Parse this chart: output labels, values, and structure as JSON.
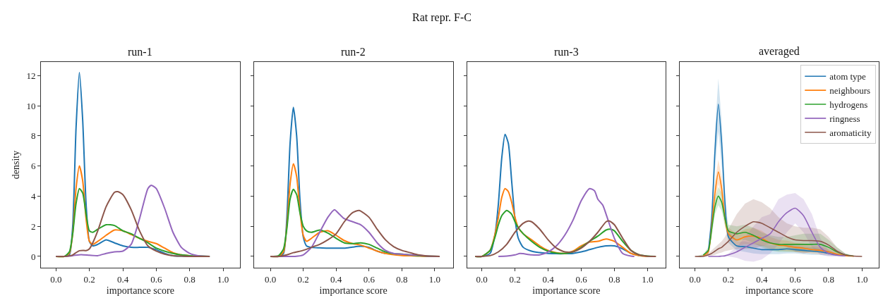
{
  "chart_data": [
    {
      "type": "line",
      "title": "run-1",
      "annotations": [
        "Rat repr. F-C"
      ],
      "xlabel": "importance score",
      "ylabel": "density",
      "xlim": [
        -0.09,
        1.1
      ],
      "ylim": [
        -0.75,
        12.9
      ],
      "xticks": [
        {
          "value": 0,
          "label": "0.0"
        },
        {
          "value": 0.2,
          "label": "0.2"
        },
        {
          "value": 0.4,
          "label": "0.4"
        },
        {
          "value": 0.6,
          "label": "0.6"
        },
        {
          "value": 0.8,
          "label": "0.8"
        },
        {
          "value": 1,
          "label": "1.0"
        }
      ],
      "yticks": [
        0,
        2,
        4,
        6,
        8,
        10,
        12
      ],
      "grid": false,
      "legend": false,
      "series": [
        {
          "color": "#1f77b4",
          "x": [
            0,
            0.05,
            0.08,
            0.1,
            0.12,
            0.14,
            0.16,
            0.18,
            0.2,
            0.22,
            0.25,
            0.3,
            0.35,
            0.4,
            0.45,
            0.5,
            0.55,
            0.6,
            0.65,
            0.7,
            0.75,
            0.8
          ],
          "values": [
            0,
            0,
            0.1,
            2,
            8.5,
            12.2,
            9,
            3.5,
            1.0,
            0.7,
            0.8,
            1.1,
            0.9,
            0.7,
            0.6,
            0.6,
            0.6,
            0.45,
            0.2,
            0.05,
            0.02,
            0
          ]
        },
        {
          "color": "#ff7f0e",
          "x": [
            0,
            0.05,
            0.08,
            0.1,
            0.12,
            0.14,
            0.16,
            0.18,
            0.2,
            0.22,
            0.25,
            0.3,
            0.35,
            0.4,
            0.45,
            0.5,
            0.55,
            0.6,
            0.65,
            0.7,
            0.75,
            0.8
          ],
          "values": [
            0,
            0,
            0.2,
            1.5,
            4.5,
            6.0,
            5,
            2.5,
            1.0,
            0.8,
            1.0,
            1.4,
            1.75,
            1.7,
            1.45,
            1.2,
            1.0,
            0.85,
            0.55,
            0.25,
            0.1,
            0.05
          ]
        },
        {
          "color": "#2ca02c",
          "x": [
            0,
            0.05,
            0.08,
            0.1,
            0.12,
            0.14,
            0.16,
            0.18,
            0.2,
            0.22,
            0.25,
            0.3,
            0.35,
            0.4,
            0.45,
            0.5,
            0.55,
            0.6,
            0.65,
            0.7,
            0.75,
            0.8,
            0.85,
            0.92
          ],
          "values": [
            0,
            0,
            0.3,
            1.5,
            3.5,
            4.5,
            4.2,
            2.8,
            1.7,
            1.6,
            1.8,
            2.1,
            2.05,
            1.7,
            1.5,
            1.2,
            0.9,
            0.55,
            0.35,
            0.2,
            0.1,
            0.05,
            0.03,
            0
          ]
        },
        {
          "color": "#9467bd",
          "x": [
            0,
            0.05,
            0.1,
            0.15,
            0.2,
            0.25,
            0.3,
            0.35,
            0.4,
            0.45,
            0.5,
            0.55,
            0.57,
            0.6,
            0.65,
            0.7,
            0.75,
            0.8,
            0.85,
            0.92
          ],
          "values": [
            0,
            0,
            0.05,
            0.12,
            0.08,
            0.05,
            0.2,
            0.3,
            0.35,
            0.8,
            2.5,
            4.5,
            4.72,
            4.5,
            3.2,
            1.6,
            0.6,
            0.2,
            0.05,
            0
          ]
        },
        {
          "color": "#8c564b",
          "x": [
            0,
            0.05,
            0.1,
            0.12,
            0.14,
            0.16,
            0.18,
            0.2,
            0.22,
            0.25,
            0.3,
            0.35,
            0.37,
            0.4,
            0.45,
            0.5,
            0.55,
            0.6,
            0.65,
            0.7,
            0.75,
            0.8,
            0.92
          ],
          "values": [
            0,
            0,
            0.1,
            0.25,
            0.38,
            0.4,
            0.38,
            0.5,
            0.9,
            1.7,
            3.3,
            4.25,
            4.3,
            4.1,
            3.1,
            1.7,
            0.7,
            0.35,
            0.15,
            0.05,
            0.02,
            0,
            0
          ]
        }
      ]
    },
    {
      "type": "line",
      "title": "run-2",
      "xlabel": "importance score",
      "xlim": [
        -0.1,
        1.11
      ],
      "ylim": [
        -0.75,
        12.9
      ],
      "xticks": [
        {
          "value": 0,
          "label": "0.0"
        },
        {
          "value": 0.2,
          "label": "0.2"
        },
        {
          "value": 0.4,
          "label": "0.4"
        },
        {
          "value": 0.6,
          "label": "0.6"
        },
        {
          "value": 0.8,
          "label": "0.8"
        },
        {
          "value": 1,
          "label": "1.0"
        }
      ],
      "yticks": [
        {
          "value": 0,
          "label": null
        },
        {
          "value": 2,
          "label": null
        },
        {
          "value": 4,
          "label": null
        },
        {
          "value": 6,
          "label": null
        },
        {
          "value": 8,
          "label": null
        },
        {
          "value": 10,
          "label": null
        },
        {
          "value": 12,
          "label": null
        }
      ],
      "tick_labels": "x",
      "grid": false,
      "legend": false,
      "series": [
        {
          "color": "#1f77b4",
          "x": [
            0,
            0.05,
            0.08,
            0.1,
            0.12,
            0.14,
            0.16,
            0.18,
            0.2,
            0.22,
            0.25,
            0.3,
            0.35,
            0.4,
            0.45,
            0.5,
            0.55,
            0.6,
            0.65,
            0.7
          ],
          "values": [
            0,
            0,
            0.2,
            2.5,
            7.5,
            9.9,
            8,
            3.8,
            1.3,
            0.7,
            0.6,
            0.57,
            0.55,
            0.55,
            0.55,
            0.62,
            0.68,
            0.6,
            0.35,
            0.2
          ]
        },
        {
          "color": "#ff7f0e",
          "x": [
            0,
            0.05,
            0.08,
            0.1,
            0.12,
            0.14,
            0.16,
            0.18,
            0.2,
            0.22,
            0.25,
            0.3,
            0.35,
            0.4,
            0.45,
            0.5,
            0.55,
            0.6,
            0.65,
            0.7,
            0.75,
            0.8,
            0.85,
            0.9,
            0.95,
            1.03
          ],
          "values": [
            0,
            0,
            0.3,
            2,
            4.8,
            6.15,
            5.3,
            3.0,
            1.4,
            1.0,
            1.2,
            1.6,
            1.7,
            1.4,
            1.05,
            0.85,
            0.75,
            0.55,
            0.35,
            0.2,
            0.12,
            0.06,
            0.04,
            0.02,
            0,
            0
          ]
        },
        {
          "color": "#2ca02c",
          "x": [
            0,
            0.05,
            0.08,
            0.1,
            0.12,
            0.14,
            0.16,
            0.18,
            0.2,
            0.22,
            0.25,
            0.3,
            0.35,
            0.4,
            0.45,
            0.5,
            0.55,
            0.6,
            0.65,
            0.7,
            0.75,
            0.8,
            0.85,
            0.9,
            0.95,
            1.03
          ],
          "values": [
            0,
            0.05,
            0.5,
            1.8,
            3.8,
            4.45,
            4.1,
            2.9,
            2.0,
            1.7,
            1.6,
            1.75,
            1.55,
            1.2,
            0.9,
            0.85,
            0.9,
            0.8,
            0.55,
            0.3,
            0.18,
            0.15,
            0.1,
            0.05,
            0.02,
            0
          ]
        },
        {
          "color": "#9467bd",
          "x": [
            0,
            0.1,
            0.15,
            0.2,
            0.25,
            0.3,
            0.35,
            0.39,
            0.42,
            0.45,
            0.5,
            0.55,
            0.6,
            0.65,
            0.7,
            0.75,
            0.8,
            0.85,
            0.9,
            0.95,
            1.03
          ],
          "values": [
            0,
            0,
            0,
            0.1,
            0.6,
            1.6,
            2.6,
            3.1,
            2.8,
            2.5,
            2.3,
            2.1,
            1.6,
            0.9,
            0.4,
            0.2,
            0.15,
            0.1,
            0.08,
            0.02,
            0
          ]
        },
        {
          "color": "#8c564b",
          "x": [
            0,
            0.05,
            0.1,
            0.14,
            0.2,
            0.25,
            0.3,
            0.35,
            0.4,
            0.45,
            0.5,
            0.54,
            0.6,
            0.65,
            0.7,
            0.75,
            0.8,
            0.85,
            0.9,
            0.95,
            1.03
          ],
          "values": [
            0,
            0,
            0.1,
            0.25,
            0.4,
            0.6,
            0.8,
            1.1,
            1.5,
            2.3,
            2.9,
            3.05,
            2.6,
            1.8,
            1.1,
            0.65,
            0.4,
            0.25,
            0.1,
            0.03,
            0
          ]
        }
      ]
    },
    {
      "type": "line",
      "title": "run-3",
      "xlabel": "importance score",
      "xlim": [
        -0.09,
        1.11
      ],
      "ylim": [
        -0.75,
        12.9
      ],
      "xticks": [
        {
          "value": 0,
          "label": "0.0"
        },
        {
          "value": 0.2,
          "label": "0.2"
        },
        {
          "value": 0.4,
          "label": "0.4"
        },
        {
          "value": 0.6,
          "label": "0.6"
        },
        {
          "value": 0.8,
          "label": "0.8"
        },
        {
          "value": 1,
          "label": "1.0"
        }
      ],
      "yticks": [
        {
          "value": 0,
          "label": null
        },
        {
          "value": 2,
          "label": null
        },
        {
          "value": 4,
          "label": null
        },
        {
          "value": 6,
          "label": null
        },
        {
          "value": 8,
          "label": null
        },
        {
          "value": 10,
          "label": null
        },
        {
          "value": 12,
          "label": null
        }
      ],
      "tick_labels": "x",
      "grid": false,
      "legend": false,
      "series": [
        {
          "color": "#1f77b4",
          "x": [
            -0.04,
            0,
            0.05,
            0.08,
            0.1,
            0.12,
            0.14,
            0.16,
            0.18,
            0.2,
            0.22,
            0.25,
            0.3,
            0.35,
            0.4,
            0.45,
            0.5,
            0.55,
            0.6,
            0.65,
            0.7,
            0.75,
            0.8,
            0.85,
            0.9,
            0.95
          ],
          "values": [
            0,
            0,
            0.2,
            1.5,
            3.5,
            6.5,
            8.1,
            7.5,
            5,
            2.5,
            1.2,
            0.6,
            0.35,
            0.25,
            0.2,
            0.18,
            0.18,
            0.2,
            0.3,
            0.45,
            0.6,
            0.7,
            0.7,
            0.5,
            0.2,
            0.05
          ]
        },
        {
          "color": "#ff7f0e",
          "x": [
            -0.04,
            0,
            0.05,
            0.08,
            0.1,
            0.12,
            0.14,
            0.16,
            0.18,
            0.2,
            0.22,
            0.25,
            0.3,
            0.35,
            0.4,
            0.45,
            0.5,
            0.55,
            0.6,
            0.65,
            0.7,
            0.75,
            0.8,
            0.85,
            0.9,
            0.95,
            1.0,
            1.05
          ],
          "values": [
            0,
            0,
            0.4,
            1.5,
            2.6,
            3.9,
            4.5,
            4.3,
            3.6,
            2.6,
            1.9,
            1.5,
            1.1,
            0.7,
            0.4,
            0.25,
            0.2,
            0.35,
            0.7,
            0.95,
            1.0,
            1.15,
            1.0,
            0.6,
            0.2,
            0.05,
            0,
            0
          ]
        },
        {
          "color": "#2ca02c",
          "x": [
            -0.04,
            0,
            0.05,
            0.08,
            0.1,
            0.12,
            0.15,
            0.18,
            0.2,
            0.22,
            0.25,
            0.3,
            0.35,
            0.4,
            0.45,
            0.5,
            0.55,
            0.6,
            0.65,
            0.7,
            0.75,
            0.78,
            0.8,
            0.85,
            0.9,
            0.95,
            1.0,
            1.05
          ],
          "values": [
            0,
            0,
            0.4,
            1.3,
            2.1,
            2.7,
            3.05,
            2.8,
            2.3,
            1.9,
            1.5,
            1.0,
            0.6,
            0.35,
            0.22,
            0.2,
            0.3,
            0.6,
            1.0,
            1.35,
            1.75,
            1.8,
            1.7,
            1.0,
            0.4,
            0.1,
            0.02,
            0
          ]
        },
        {
          "color": "#9467bd",
          "x": [
            0.1,
            0.15,
            0.2,
            0.23,
            0.25,
            0.3,
            0.35,
            0.4,
            0.45,
            0.5,
            0.55,
            0.6,
            0.65,
            0.68,
            0.7,
            0.73,
            0.75,
            0.8,
            0.85,
            0.9,
            0.92
          ],
          "values": [
            0,
            0.02,
            0.1,
            0.2,
            0.18,
            0.1,
            0.1,
            0.3,
            0.7,
            1.4,
            2.4,
            3.7,
            4.5,
            4.35,
            3.8,
            3.4,
            2.8,
            1.2,
            0.2,
            0.02,
            0
          ]
        },
        {
          "color": "#8c564b",
          "x": [
            -0.04,
            0,
            0.05,
            0.1,
            0.15,
            0.2,
            0.25,
            0.28,
            0.3,
            0.35,
            0.4,
            0.45,
            0.5,
            0.55,
            0.6,
            0.65,
            0.7,
            0.75,
            0.77,
            0.8,
            0.85,
            0.9,
            0.95,
            1.0,
            1.05
          ],
          "values": [
            0,
            0,
            0.05,
            0.3,
            0.8,
            1.6,
            2.2,
            2.35,
            2.3,
            1.8,
            1.1,
            0.55,
            0.3,
            0.3,
            0.55,
            1.0,
            1.6,
            2.3,
            2.35,
            2.1,
            1.2,
            0.4,
            0.1,
            0.01,
            0
          ]
        }
      ]
    },
    {
      "type": "line",
      "title": "averaged",
      "xlabel": "importance score",
      "xlim": [
        -0.09,
        1.1
      ],
      "ylim": [
        -0.75,
        12.9
      ],
      "xticks": [
        {
          "value": 0,
          "label": "0.0"
        },
        {
          "value": 0.2,
          "label": "0.2"
        },
        {
          "value": 0.4,
          "label": "0.4"
        },
        {
          "value": 0.6,
          "label": "0.6"
        },
        {
          "value": 0.8,
          "label": "0.8"
        },
        {
          "value": 1,
          "label": "1.0"
        }
      ],
      "yticks": [
        {
          "value": 0,
          "label": null
        },
        {
          "value": 2,
          "label": null
        },
        {
          "value": 4,
          "label": null
        },
        {
          "value": 6,
          "label": null
        },
        {
          "value": 8,
          "label": null
        },
        {
          "value": 10,
          "label": null
        },
        {
          "value": 12,
          "label": null
        }
      ],
      "tick_labels": "x",
      "grid": false,
      "legend": "top right",
      "x": [
        0,
        0.05,
        0.08,
        0.1,
        0.12,
        0.14,
        0.16,
        0.18,
        0.2,
        0.25,
        0.3,
        0.35,
        0.4,
        0.45,
        0.5,
        0.55,
        0.6,
        0.65,
        0.7,
        0.75,
        0.8,
        0.85,
        0.9,
        0.95,
        1.0
      ],
      "series": [
        {
          "name": "atom type",
          "color": "#1f77b4",
          "values": [
            null,
            null,
            0.3,
            2.5,
            7,
            10.1,
            7.5,
            3.5,
            1.3,
            0.7,
            0.65,
            0.55,
            0.45,
            0.45,
            0.45,
            0.5,
            0.45,
            0.4,
            0.35,
            0.3,
            0.2,
            0.1,
            0.03,
            null,
            null
          ],
          "lower": [
            0,
            0,
            0.1,
            1.8,
            5.8,
            8.3,
            6.0,
            2.6,
            0.9,
            0.4,
            0.3,
            0.2,
            0.15,
            0.15,
            0.15,
            0.2,
            0.2,
            0.15,
            0.1,
            0.1,
            0.05,
            0.02,
            0,
            0,
            0
          ],
          "upper": [
            0,
            0.1,
            0.5,
            3.2,
            8.3,
            11.8,
            9.0,
            4.4,
            1.7,
            1.0,
            1.0,
            0.9,
            0.75,
            0.75,
            0.75,
            0.8,
            0.7,
            0.65,
            0.6,
            0.5,
            0.35,
            0.2,
            0.06,
            0.01,
            0
          ]
        },
        {
          "name": "neighbours",
          "color": "#ff7f0e",
          "values": [
            null,
            0.05,
            0.3,
            2,
            4.2,
            5.6,
            4.5,
            2.5,
            1.5,
            1.1,
            1.3,
            1.35,
            1.2,
            0.9,
            0.75,
            0.7,
            0.6,
            0.55,
            0.45,
            0.4,
            0.3,
            0.15,
            0.05,
            0.01,
            null
          ],
          "lower": [
            0,
            0,
            0.1,
            1.4,
            3.5,
            4.8,
            3.8,
            2.0,
            1.1,
            0.7,
            0.8,
            0.8,
            0.7,
            0.5,
            0.4,
            0.35,
            0.3,
            0.25,
            0.2,
            0.15,
            0.1,
            0.05,
            0.01,
            0,
            0
          ],
          "upper": [
            0,
            0.1,
            0.5,
            2.6,
            5,
            6.4,
            5.3,
            3.0,
            1.9,
            1.5,
            1.8,
            1.9,
            1.7,
            1.3,
            1.1,
            1.05,
            0.9,
            0.85,
            0.7,
            0.65,
            0.5,
            0.25,
            0.1,
            0.02,
            0
          ]
        },
        {
          "name": "hydrogens",
          "color": "#2ca02c",
          "values": [
            null,
            0.1,
            0.4,
            1.8,
            3.3,
            4.0,
            3.6,
            2.5,
            1.7,
            1.5,
            1.6,
            1.4,
            1.1,
            0.9,
            0.8,
            0.8,
            0.8,
            0.8,
            0.8,
            0.8,
            0.6,
            0.3,
            0.1,
            0.02,
            null
          ],
          "lower": [
            0,
            0.05,
            0.2,
            1.3,
            2.8,
            3.4,
            3.0,
            2.0,
            1.3,
            1.0,
            1.1,
            0.9,
            0.6,
            0.4,
            0.3,
            0.3,
            0.3,
            0.3,
            0.3,
            0.3,
            0.2,
            0.1,
            0.03,
            0,
            0
          ],
          "upper": [
            0,
            0.15,
            0.6,
            2.3,
            3.9,
            4.6,
            4.2,
            3.0,
            2.1,
            2.0,
            2.1,
            1.9,
            1.6,
            1.4,
            1.3,
            1.3,
            1.4,
            1.5,
            1.5,
            1.5,
            1.1,
            0.6,
            0.2,
            0.04,
            0
          ]
        },
        {
          "name": "ringness",
          "color": "#9467bd",
          "values": [
            null,
            null,
            0,
            0,
            0,
            0,
            0.02,
            0.04,
            0.1,
            0.3,
            0.6,
            0.9,
            1.2,
            1.5,
            2.3,
            2.9,
            3.2,
            2.7,
            1.6,
            0.6,
            0.2,
            0.08,
            0.03,
            null,
            null
          ],
          "lower": [
            0,
            0,
            0,
            0,
            0,
            0,
            0,
            0,
            0,
            -0.1,
            -0.3,
            -0.35,
            -0.2,
            0.2,
            0.8,
            1.6,
            2.2,
            1.6,
            0.6,
            0.1,
            0,
            0,
            0,
            0,
            0
          ],
          "upper": [
            0,
            0,
            0,
            0,
            0,
            0,
            0.05,
            0.1,
            0.2,
            0.6,
            1.3,
            2.0,
            2.6,
            2.8,
            3.8,
            4.1,
            4.2,
            3.8,
            2.8,
            1.2,
            0.4,
            0.15,
            0.05,
            0,
            0
          ]
        },
        {
          "name": "aromaticity",
          "color": "#8c564b",
          "values": [
            0,
            0,
            0.1,
            0.2,
            0.35,
            0.5,
            0.6,
            0.8,
            1.0,
            1.6,
            2.0,
            2.3,
            2.2,
            1.9,
            1.6,
            1.3,
            1.1,
            1.05,
            1.05,
            1.0,
            0.75,
            0.35,
            0.1,
            0.02,
            0
          ],
          "lower": [
            0,
            0,
            0,
            0.05,
            0.1,
            0.2,
            0.25,
            0.35,
            0.4,
            0.5,
            0.5,
            0.5,
            0.7,
            0.8,
            0.8,
            0.6,
            0.3,
            0.2,
            0.3,
            0.4,
            0.3,
            0.1,
            0.02,
            0,
            0
          ],
          "upper": [
            0,
            0.02,
            0.2,
            0.4,
            0.6,
            0.8,
            1.0,
            1.3,
            1.8,
            2.8,
            3.5,
            3.8,
            3.6,
            3.2,
            2.6,
            2.2,
            2.0,
            1.9,
            1.9,
            1.8,
            1.3,
            0.6,
            0.2,
            0.05,
            0
          ]
        }
      ]
    }
  ]
}
